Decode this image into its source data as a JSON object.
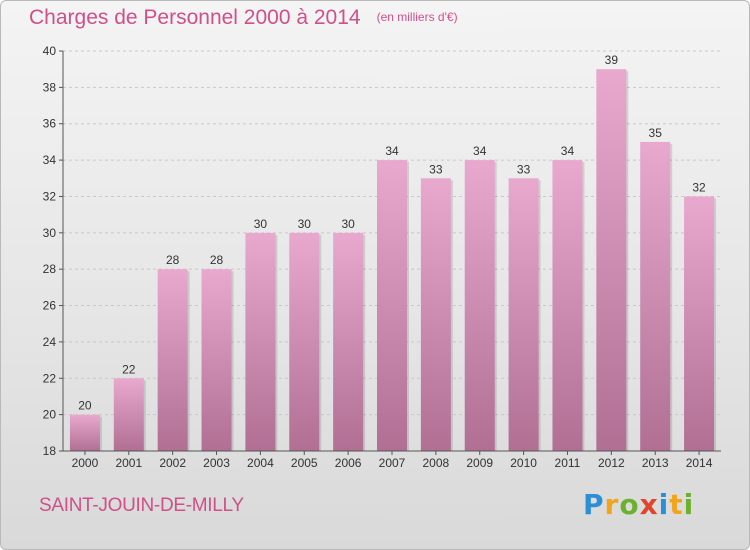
{
  "header": {
    "title": "Charges de Personnel 2000 à 2014",
    "subtitle": "(en milliers d'€)"
  },
  "commune": "SAINT-JOUIN-DE-MILLY",
  "brand": {
    "text": "Proxiti"
  },
  "colors": {
    "title": "#d0508a",
    "bar_top": "#e9a9cf",
    "bar_bottom": "#b06f93",
    "brand_blue": "#2a8fd6",
    "brand_orange": "#f2a51a",
    "brand_green": "#6bb12e",
    "brand_red": "#e0452b"
  },
  "chart_data": {
    "type": "bar",
    "title": "Charges de Personnel 2000 à 2014",
    "subtitle": "(en milliers d'€)",
    "categories": [
      "2000",
      "2001",
      "2002",
      "2003",
      "2004",
      "2005",
      "2006",
      "2007",
      "2008",
      "2009",
      "2010",
      "2011",
      "2012",
      "2013",
      "2014"
    ],
    "values": [
      20,
      22,
      28,
      28,
      30,
      30,
      30,
      34,
      33,
      34,
      33,
      34,
      39,
      35,
      32
    ],
    "ylim": [
      18,
      40
    ],
    "yticks": [
      18,
      20,
      22,
      24,
      26,
      28,
      30,
      32,
      34,
      36,
      38,
      40
    ],
    "grid": true,
    "data_labels": true
  }
}
